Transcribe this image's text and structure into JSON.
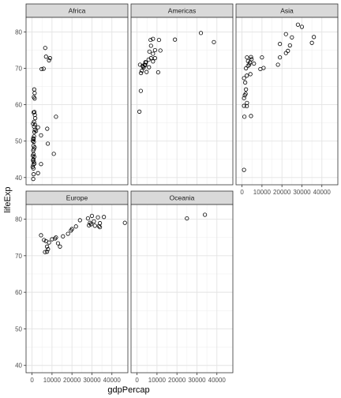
{
  "chart_data": {
    "type": "scatter",
    "title": "",
    "xlabel": "gdpPercap",
    "ylabel": "lifeExp",
    "xlim": [
      -3000,
      48000
    ],
    "ylim": [
      38,
      84
    ],
    "x_ticks": [
      0,
      10000,
      20000,
      30000,
      40000
    ],
    "x_tick_labels": [
      "0",
      "10000",
      "20000",
      "30000",
      "40000"
    ],
    "y_ticks": [
      40,
      50,
      60,
      70,
      80
    ],
    "y_tick_labels": [
      "40",
      "50",
      "60",
      "70",
      "80"
    ],
    "grid": true,
    "facets": [
      {
        "name": "Africa",
        "points": [
          [
            6600,
            75.6
          ],
          [
            7000,
            73.2
          ],
          [
            8500,
            72.2
          ],
          [
            9000,
            72.8
          ],
          [
            4800,
            69.8
          ],
          [
            5800,
            69.9
          ],
          [
            1100,
            64.2
          ],
          [
            1300,
            63.2
          ],
          [
            900,
            62.1
          ],
          [
            1300,
            61.7
          ],
          [
            1200,
            58.0
          ],
          [
            800,
            57.9
          ],
          [
            1400,
            57.2
          ],
          [
            1600,
            56.3
          ],
          [
            12000,
            56.7
          ],
          [
            1000,
            55.3
          ],
          [
            500,
            54.8
          ],
          [
            1500,
            54.5
          ],
          [
            1000,
            54.0
          ],
          [
            3000,
            53.8
          ],
          [
            7600,
            53.4
          ],
          [
            1400,
            53.1
          ],
          [
            2000,
            52.8
          ],
          [
            1200,
            52.5
          ],
          [
            4500,
            51.6
          ],
          [
            1000,
            51.3
          ],
          [
            600,
            50.8
          ],
          [
            800,
            50.5
          ],
          [
            400,
            50.1
          ],
          [
            900,
            49.8
          ],
          [
            7900,
            49.3
          ],
          [
            700,
            48.7
          ],
          [
            1300,
            48.3
          ],
          [
            900,
            47.8
          ],
          [
            600,
            47.4
          ],
          [
            10900,
            46.5
          ],
          [
            800,
            46.4
          ],
          [
            400,
            46.0
          ],
          [
            1100,
            45.7
          ],
          [
            700,
            45.0
          ],
          [
            500,
            44.7
          ],
          [
            900,
            44.3
          ],
          [
            1200,
            43.8
          ],
          [
            4500,
            43.7
          ],
          [
            600,
            43.5
          ],
          [
            300,
            42.9
          ],
          [
            700,
            42.5
          ],
          [
            3000,
            41.2
          ],
          [
            800,
            40.9
          ],
          [
            600,
            39.6
          ]
        ]
      },
      {
        "name": "Americas",
        "points": [
          [
            6800,
            77.8
          ],
          [
            8000,
            78.1
          ],
          [
            11000,
            77.8
          ],
          [
            19000,
            77.9
          ],
          [
            32000,
            79.7
          ],
          [
            38500,
            77.2
          ],
          [
            7000,
            76.2
          ],
          [
            9000,
            75.0
          ],
          [
            6200,
            74.6
          ],
          [
            8000,
            74.0
          ],
          [
            11700,
            74.9
          ],
          [
            7000,
            72.8
          ],
          [
            9000,
            72.8
          ],
          [
            5800,
            72.4
          ],
          [
            8000,
            71.9
          ],
          [
            3800,
            71.0
          ],
          [
            4500,
            71.6
          ],
          [
            1500,
            71.0
          ],
          [
            2800,
            70.7
          ],
          [
            6000,
            70.3
          ],
          [
            10600,
            68.9
          ],
          [
            2400,
            69.3
          ],
          [
            3000,
            70.5
          ],
          [
            3300,
            70.2
          ],
          [
            4200,
            71.7
          ],
          [
            2000,
            68.7
          ],
          [
            4800,
            69.0
          ],
          [
            4100,
            70.9
          ],
          [
            1900,
            63.8
          ],
          [
            1200,
            58.1
          ]
        ]
      },
      {
        "name": "Asia",
        "points": [
          [
            28000,
            82.0
          ],
          [
            30000,
            81.4
          ],
          [
            36000,
            78.6
          ],
          [
            35000,
            77.0
          ],
          [
            22000,
            79.4
          ],
          [
            25000,
            78.5
          ],
          [
            19000,
            76.7
          ],
          [
            24000,
            76.3
          ],
          [
            22000,
            74.2
          ],
          [
            23000,
            74.8
          ],
          [
            19000,
            73.0
          ],
          [
            10000,
            73.0
          ],
          [
            2500,
            73.0
          ],
          [
            4500,
            73.1
          ],
          [
            4800,
            72.5
          ],
          [
            3000,
            72.0
          ],
          [
            4000,
            71.6
          ],
          [
            3600,
            71.0
          ],
          [
            3000,
            70.7
          ],
          [
            6000,
            71.3
          ],
          [
            2000,
            70.0
          ],
          [
            9200,
            69.8
          ],
          [
            10800,
            70.1
          ],
          [
            2400,
            68.0
          ],
          [
            4200,
            68.4
          ],
          [
            1000,
            67.3
          ],
          [
            18000,
            71.0
          ],
          [
            1600,
            66.1
          ],
          [
            2000,
            64.2
          ],
          [
            1800,
            63.0
          ],
          [
            1400,
            62.6
          ],
          [
            1000,
            61.8
          ],
          [
            2500,
            60.5
          ],
          [
            1000,
            59.7
          ],
          [
            2400,
            59.6
          ],
          [
            1200,
            56.7
          ],
          [
            4500,
            56.9
          ],
          [
            1000,
            42.1
          ]
        ]
      },
      {
        "name": "Europe",
        "points": [
          [
            46500,
            79.0
          ],
          [
            36000,
            80.6
          ],
          [
            33000,
            80.5
          ],
          [
            30000,
            80.9
          ],
          [
            28000,
            80.2
          ],
          [
            24000,
            79.7
          ],
          [
            31000,
            79.4
          ],
          [
            29000,
            79.0
          ],
          [
            34000,
            78.9
          ],
          [
            29500,
            78.6
          ],
          [
            28500,
            78.3
          ],
          [
            31500,
            78.2
          ],
          [
            33500,
            78.1
          ],
          [
            34000,
            77.8
          ],
          [
            22000,
            78.0
          ],
          [
            20000,
            77.3
          ],
          [
            19500,
            76.9
          ],
          [
            18000,
            76.0
          ],
          [
            15500,
            75.3
          ],
          [
            4500,
            75.6
          ],
          [
            12000,
            75.0
          ],
          [
            11500,
            74.7
          ],
          [
            10000,
            74.5
          ],
          [
            6000,
            74.3
          ],
          [
            7000,
            74.0
          ],
          [
            8500,
            73.6
          ],
          [
            13000,
            73.4
          ],
          [
            14000,
            72.5
          ],
          [
            7500,
            72.5
          ],
          [
            8000,
            71.8
          ],
          [
            6500,
            71.0
          ],
          [
            7500,
            71.1
          ]
        ]
      },
      {
        "name": "Oceania",
        "points": [
          [
            34000,
            81.2
          ],
          [
            25000,
            80.2
          ]
        ]
      }
    ]
  }
}
